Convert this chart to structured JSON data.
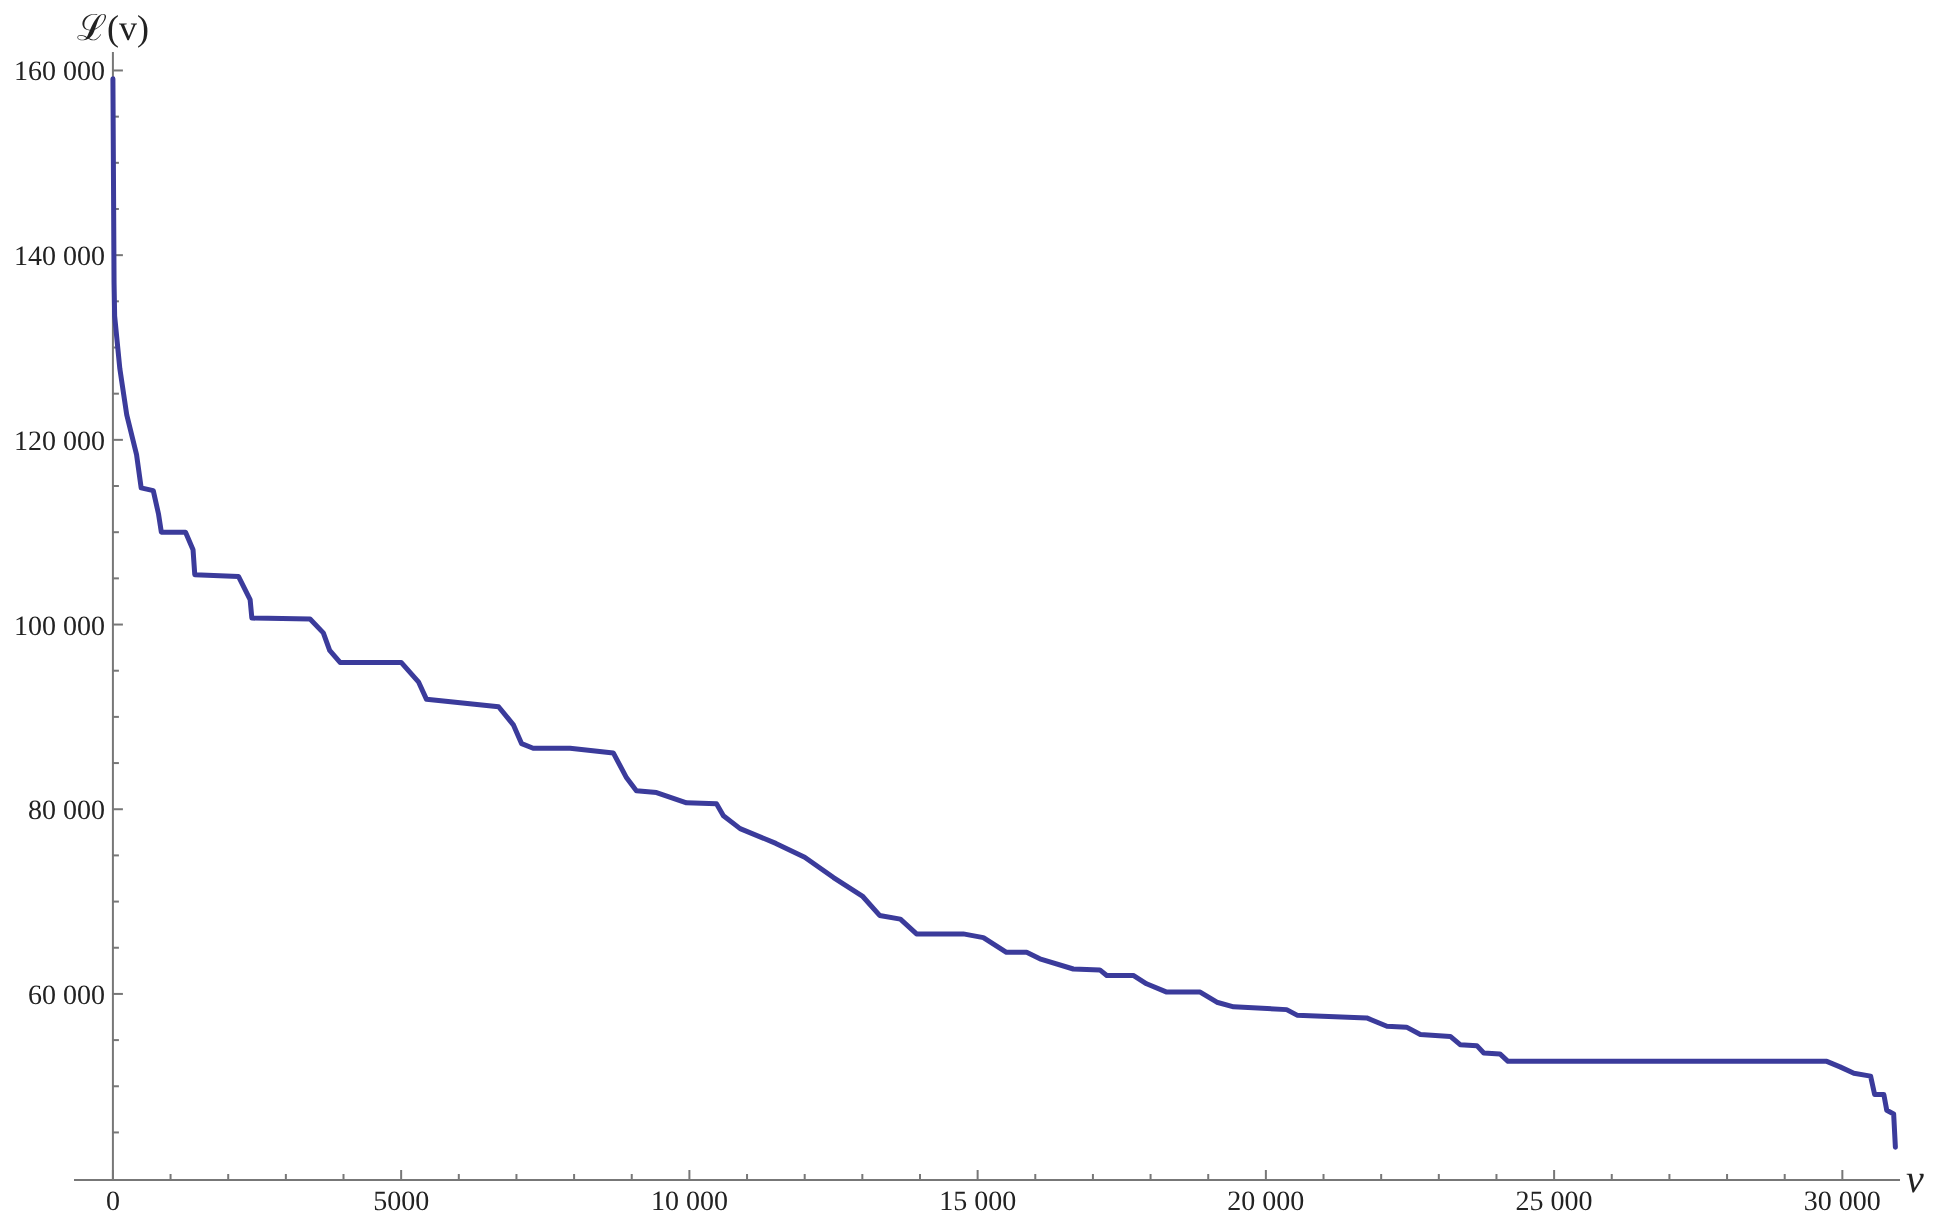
{
  "chart_data": {
    "type": "line",
    "xlabel": "v",
    "ylabel": "ℒ(v)",
    "color": "#3b3b9b",
    "line_style": "solid",
    "marker": "none",
    "grid": false,
    "xlim": [
      -675,
      31000
    ],
    "ylim": [
      39850,
      162000
    ],
    "xticks": [
      0,
      {
        "value": 1000,
        "label": null
      },
      {
        "value": 2000,
        "label": null
      },
      {
        "value": 3000,
        "label": null
      },
      {
        "value": 4000,
        "label": null
      },
      5000,
      {
        "value": 6000,
        "label": null
      },
      {
        "value": 7000,
        "label": null
      },
      {
        "value": 8000,
        "label": null
      },
      {
        "value": 9000,
        "label": null
      },
      {
        "value": 10000,
        "label": "10 000"
      },
      {
        "value": 11000,
        "label": null
      },
      {
        "value": 12000,
        "label": null
      },
      {
        "value": 13000,
        "label": null
      },
      {
        "value": 14000,
        "label": null
      },
      {
        "value": 15000,
        "label": "15 000"
      },
      {
        "value": 16000,
        "label": null
      },
      {
        "value": 17000,
        "label": null
      },
      {
        "value": 18000,
        "label": null
      },
      {
        "value": 19000,
        "label": null
      },
      {
        "value": 20000,
        "label": "20 000"
      },
      {
        "value": 21000,
        "label": null
      },
      {
        "value": 22000,
        "label": null
      },
      {
        "value": 23000,
        "label": null
      },
      {
        "value": 24000,
        "label": null
      },
      {
        "value": 25000,
        "label": "25 000"
      },
      {
        "value": 26000,
        "label": null
      },
      {
        "value": 27000,
        "label": null
      },
      {
        "value": 28000,
        "label": null
      },
      {
        "value": 29000,
        "label": null
      },
      {
        "value": 30000,
        "label": "30 000"
      }
    ],
    "yticks": [
      {
        "value": 45000,
        "label": null
      },
      {
        "value": 50000,
        "label": null
      },
      {
        "value": 55000,
        "label": null
      },
      {
        "value": 60000,
        "label": "60 000"
      },
      {
        "value": 65000,
        "label": null
      },
      {
        "value": 70000,
        "label": null
      },
      {
        "value": 75000,
        "label": null
      },
      {
        "value": 80000,
        "label": "80 000"
      },
      {
        "value": 85000,
        "label": null
      },
      {
        "value": 90000,
        "label": null
      },
      {
        "value": 95000,
        "label": null
      },
      {
        "value": 100000,
        "label": "100 000"
      },
      {
        "value": 105000,
        "label": null
      },
      {
        "value": 110000,
        "label": null
      },
      {
        "value": 115000,
        "label": null
      },
      {
        "value": 120000,
        "label": "120 000"
      },
      {
        "value": 125000,
        "label": null
      },
      {
        "value": 130000,
        "label": null
      },
      {
        "value": 135000,
        "label": null
      },
      {
        "value": 140000,
        "label": "140 000"
      },
      {
        "value": 145000,
        "label": null
      },
      {
        "value": 150000,
        "label": null
      },
      {
        "value": 155000,
        "label": null
      },
      {
        "value": 160000,
        "label": "160 000"
      }
    ],
    "x": [
      0,
      20,
      30,
      120,
      240,
      410,
      490,
      700,
      790,
      840,
      1260,
      1390,
      1420,
      2180,
      2380,
      2410,
      3420,
      3650,
      3760,
      3940,
      5000,
      5300,
      5440,
      6690,
      6950,
      7090,
      7290,
      7930,
      8680,
      8910,
      9080,
      9430,
      9950,
      10470,
      10590,
      10880,
      11500,
      12000,
      12500,
      13000,
      13300,
      13660,
      13940,
      14750,
      15100,
      15500,
      15850,
      16080,
      16660,
      17120,
      17240,
      17700,
      17930,
      18280,
      18860,
      19150,
      19440,
      20360,
      20540,
      21750,
      22100,
      22440,
      22680,
      23200,
      23370,
      23660,
      23780,
      24060,
      24200,
      29730,
      29960,
      30200,
      30490,
      30560,
      30720,
      30770,
      30890,
      30920
    ],
    "values": [
      159100,
      137000,
      133400,
      127700,
      122700,
      118400,
      114800,
      114500,
      112000,
      110000,
      110000,
      108100,
      105400,
      105200,
      102700,
      100700,
      100600,
      99100,
      97200,
      95900,
      95900,
      93800,
      91900,
      91100,
      89100,
      87100,
      86600,
      86600,
      86100,
      83400,
      82000,
      81800,
      80700,
      80600,
      79300,
      77900,
      76300,
      74800,
      72600,
      70600,
      68500,
      68100,
      66500,
      66500,
      66100,
      64500,
      64500,
      63800,
      62700,
      62600,
      62000,
      62000,
      61100,
      60200,
      60200,
      59100,
      58600,
      58300,
      57700,
      57400,
      56500,
      56400,
      55600,
      55400,
      54500,
      54400,
      53600,
      53500,
      52700,
      52700,
      52100,
      51400,
      51100,
      49100,
      49100,
      47400,
      47000,
      43400
    ]
  }
}
